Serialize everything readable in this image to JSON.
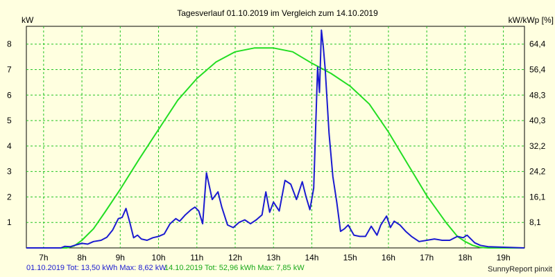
{
  "title": "Tagesverlauf 01.10.2019 im Vergleich zum 14.10.2019",
  "footer": {
    "series_a": "01.10.2019 Tot: 13,50 kWh Max: 8,62 kW",
    "series_b": "14.10.2019 Tot: 52,96 kWh Max: 7,85 kW",
    "credit": "SunnyReport pinxit"
  },
  "chart_data": {
    "type": "line",
    "title": "Tagesverlauf 01.10.2019 im Vergleich zum 14.10.2019",
    "ylabel_left": "kW",
    "ylabel_right": "kW/kWp [%]",
    "xlim": [
      6.55,
      19.55
    ],
    "ylim": [
      0,
      8.7
    ],
    "x_ticks": [
      {
        "x": 7,
        "label": "7h"
      },
      {
        "x": 8,
        "label": "8h"
      },
      {
        "x": 9,
        "label": "9h"
      },
      {
        "x": 10,
        "label": "10h"
      },
      {
        "x": 11,
        "label": "11h"
      },
      {
        "x": 12,
        "label": "12h"
      },
      {
        "x": 13,
        "label": "13h"
      },
      {
        "x": 14,
        "label": "14h"
      },
      {
        "x": 15,
        "label": "15h"
      },
      {
        "x": 16,
        "label": "16h"
      },
      {
        "x": 17,
        "label": "17h"
      },
      {
        "x": 18,
        "label": "18h"
      },
      {
        "x": 19,
        "label": "19h"
      }
    ],
    "y_ticks_left": [
      1,
      2,
      3,
      4,
      5,
      6,
      7,
      8
    ],
    "y_ticks_right": [
      {
        "y": 1,
        "label": "8,1"
      },
      {
        "y": 2,
        "label": "16,1"
      },
      {
        "y": 3,
        "label": "24,2"
      },
      {
        "y": 4,
        "label": "32,2"
      },
      {
        "y": 5,
        "label": "40,3"
      },
      {
        "y": 6,
        "label": "48,3"
      },
      {
        "y": 7,
        "label": "56,4"
      },
      {
        "y": 8,
        "label": "64,4"
      }
    ],
    "grid": true,
    "colors": {
      "series_a": "#1a1ad0",
      "series_b": "#22dd22",
      "grid": "#22c422",
      "background": "#ffffe0",
      "plot_border": "#000000"
    },
    "series": [
      {
        "name": "01.10.2019",
        "color": "#1a1ad0",
        "x": [
          6.55,
          7.45,
          7.55,
          7.7,
          7.85,
          8.0,
          8.15,
          8.3,
          8.5,
          8.65,
          8.8,
          8.95,
          9.05,
          9.15,
          9.25,
          9.35,
          9.45,
          9.55,
          9.7,
          9.85,
          10.0,
          10.15,
          10.3,
          10.45,
          10.55,
          10.7,
          10.85,
          10.95,
          11.05,
          11.15,
          11.25,
          11.4,
          11.55,
          11.65,
          11.8,
          11.95,
          12.1,
          12.25,
          12.4,
          12.55,
          12.7,
          12.8,
          12.9,
          13.0,
          13.15,
          13.3,
          13.45,
          13.6,
          13.75,
          13.85,
          13.95,
          14.05,
          14.15,
          14.2,
          14.25,
          14.3,
          14.35,
          14.45,
          14.55,
          14.65,
          14.75,
          14.85,
          14.95,
          15.1,
          15.25,
          15.4,
          15.55,
          15.7,
          15.8,
          15.95,
          16.05,
          16.15,
          16.3,
          16.45,
          16.6,
          16.8,
          17.0,
          17.2,
          17.4,
          17.6,
          17.8,
          17.95,
          18.05,
          18.15,
          18.25,
          18.4,
          18.6,
          19.55
        ],
        "y": [
          0.0,
          0.0,
          0.06,
          0.05,
          0.12,
          0.18,
          0.15,
          0.25,
          0.3,
          0.42,
          0.7,
          1.15,
          1.2,
          1.55,
          1.0,
          0.4,
          0.5,
          0.35,
          0.3,
          0.4,
          0.45,
          0.55,
          0.95,
          1.15,
          1.05,
          1.3,
          1.5,
          1.6,
          1.45,
          0.95,
          2.95,
          1.9,
          2.2,
          1.6,
          0.9,
          0.8,
          1.0,
          1.1,
          0.95,
          1.1,
          1.3,
          2.2,
          1.4,
          1.8,
          1.45,
          2.65,
          2.5,
          1.9,
          2.6,
          2.0,
          1.5,
          2.35,
          7.1,
          6.1,
          8.55,
          7.9,
          7.0,
          4.5,
          2.8,
          1.8,
          0.65,
          0.75,
          0.9,
          0.5,
          0.45,
          0.45,
          0.85,
          0.5,
          0.9,
          1.25,
          0.8,
          1.05,
          0.9,
          0.65,
          0.45,
          0.25,
          0.3,
          0.35,
          0.3,
          0.3,
          0.45,
          0.4,
          0.5,
          0.35,
          0.2,
          0.1,
          0.05,
          0.0
        ]
      },
      {
        "name": "14.10.2019",
        "color": "#22dd22",
        "x": [
          6.55,
          7.6,
          7.8,
          8.0,
          8.3,
          8.6,
          9.0,
          9.5,
          10.0,
          10.5,
          11.0,
          11.5,
          12.0,
          12.5,
          13.0,
          13.5,
          14.0,
          14.5,
          15.0,
          15.5,
          16.0,
          16.5,
          17.0,
          17.5,
          17.8,
          18.0,
          18.2,
          18.4,
          18.6,
          19.55
        ],
        "y": [
          0.0,
          0.0,
          0.08,
          0.3,
          0.75,
          1.4,
          2.3,
          3.5,
          4.65,
          5.8,
          6.65,
          7.3,
          7.7,
          7.85,
          7.85,
          7.7,
          7.25,
          6.85,
          6.35,
          5.65,
          4.55,
          3.3,
          2.05,
          1.0,
          0.45,
          0.25,
          0.1,
          0.02,
          0.0,
          0.0
        ]
      }
    ]
  }
}
